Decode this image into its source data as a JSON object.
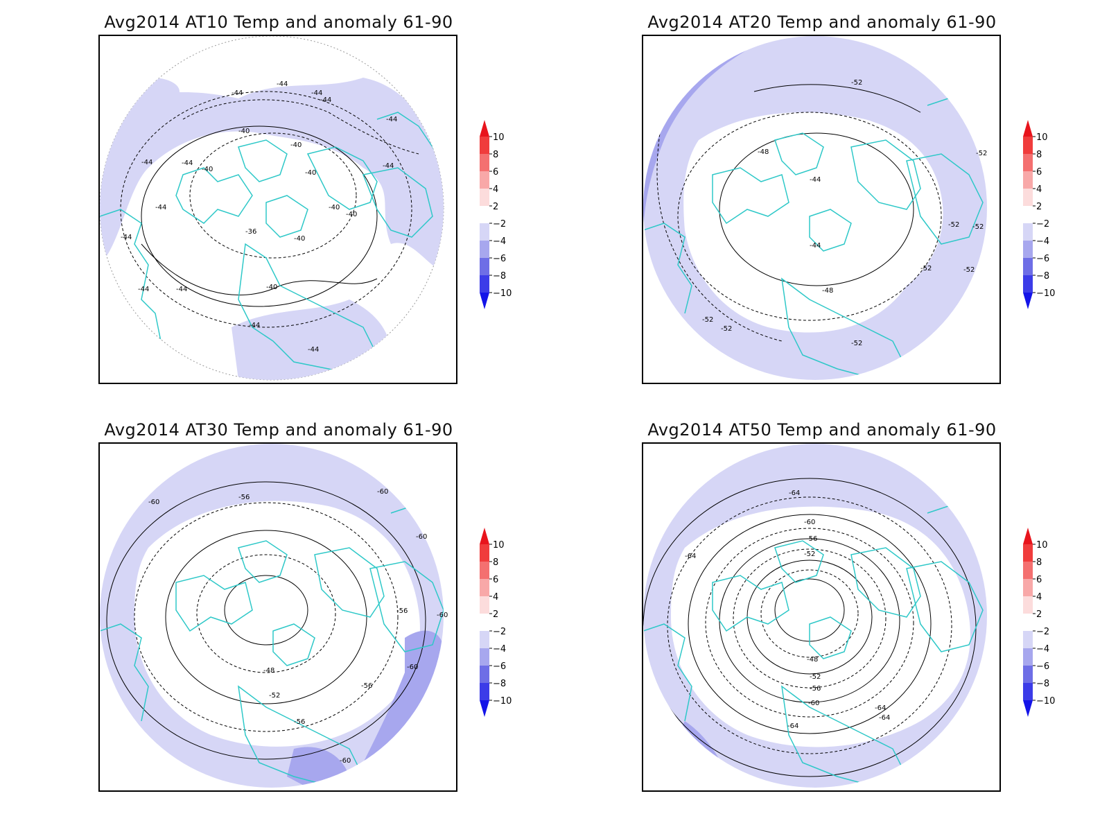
{
  "colors": {
    "anomaly_weak": "#d6d6f6",
    "anomaly_medium": "#a7a7ee",
    "coastline": "#2ec8c8",
    "contour": "#000000"
  },
  "colorbar": {
    "labels": [
      "10",
      "8",
      "6",
      "4",
      "2",
      "−2",
      "−4",
      "−6",
      "−8",
      "−10"
    ],
    "colors": [
      "#e8141c",
      "#f03c3c",
      "#f47070",
      "#f8a8a8",
      "#fcdcdc",
      "#ffffff",
      "#d6d6f6",
      "#a7a7ee",
      "#6e6ee6",
      "#3c3ce8",
      "#1414e8"
    ]
  },
  "panels": [
    {
      "title": "Avg2014 AT10 Temp and anomaly 61-90",
      "contour_labels": [
        "-44",
        "-44",
        "-44",
        "-44",
        "-44",
        "-44",
        "-44",
        "-44",
        "-44",
        "-44",
        "-40",
        "-40",
        "-40",
        "-40",
        "-40",
        "-40",
        "-40",
        "-40",
        "-36",
        "-44",
        "-44",
        "-44",
        "-44"
      ]
    },
    {
      "title": "Avg2014 AT20 Temp and anomaly 61-90",
      "contour_labels": [
        "-52",
        "-48",
        "-44",
        "-44",
        "-48",
        "-52",
        "-52",
        "-52",
        "-52",
        "-52",
        "-52",
        "-52",
        "-52"
      ]
    },
    {
      "title": "Avg2014 AT30 Temp and anomaly 61-90",
      "contour_labels": [
        "-60",
        "-56",
        "-60",
        "-60",
        "-56",
        "-48",
        "-52",
        "-56",
        "-56",
        "-60",
        "-60",
        "-60"
      ]
    },
    {
      "title": "Avg2014 AT50 Temp and anomaly 61-90",
      "contour_labels": [
        "-64",
        "-64",
        "-60",
        "-56",
        "-52",
        "-48",
        "-52",
        "-56",
        "-60",
        "-64",
        "-64",
        "-64"
      ]
    }
  ]
}
